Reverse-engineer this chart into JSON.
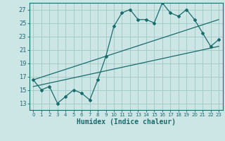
{
  "xlabel": "Humidex (Indice chaleur)",
  "bg_color": "#cce5e5",
  "grid_color": "#a0c8c8",
  "line_color": "#1a6b6b",
  "xlim": [
    -0.5,
    23.5
  ],
  "ylim": [
    12,
    28
  ],
  "xticks": [
    0,
    1,
    2,
    3,
    4,
    5,
    6,
    7,
    8,
    9,
    10,
    11,
    12,
    13,
    14,
    15,
    16,
    17,
    18,
    19,
    20,
    21,
    22,
    23
  ],
  "yticks": [
    13,
    15,
    17,
    19,
    21,
    23,
    25,
    27
  ],
  "main_line_x": [
    0,
    1,
    2,
    3,
    4,
    5,
    6,
    7,
    8,
    9,
    10,
    11,
    12,
    13,
    14,
    15,
    16,
    17,
    18,
    19,
    20,
    21,
    22,
    23
  ],
  "main_line_y": [
    16.5,
    15.0,
    15.5,
    13.0,
    14.0,
    15.0,
    14.5,
    13.5,
    16.5,
    20.0,
    24.5,
    26.5,
    27.0,
    25.5,
    25.5,
    25.0,
    28.0,
    26.5,
    26.0,
    27.0,
    25.5,
    23.5,
    21.5,
    22.5
  ],
  "low_line_x": [
    0,
    23
  ],
  "low_line_y": [
    15.5,
    21.5
  ],
  "high_line_x": [
    0,
    23
  ],
  "high_line_y": [
    16.5,
    25.5
  ]
}
